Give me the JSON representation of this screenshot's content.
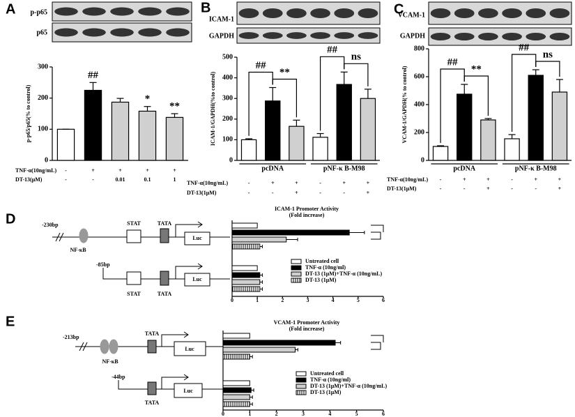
{
  "chart_data": [
    {
      "type": "bar",
      "panel": "A",
      "blot_labels": [
        "p-p65",
        "p65"
      ],
      "ylabel": "p-p65/p65(% to control)",
      "ylim": [
        0,
        300
      ],
      "yticks": [
        0,
        100,
        200,
        300
      ],
      "values": [
        100,
        225,
        187,
        158,
        138
      ],
      "errors": [
        0,
        25,
        12,
        15,
        12
      ],
      "colors": [
        "#ffffff",
        "#000000",
        "#d0d0d0",
        "#d0d0d0",
        "#d0d0d0"
      ],
      "annotations": [
        null,
        "##",
        null,
        "*",
        "**"
      ],
      "treatments": [
        {
          "name": "TNF-α(10ng/mL)",
          "values": [
            "-",
            "+",
            "+",
            "+",
            "+"
          ]
        },
        {
          "name": "DT-13(μM)",
          "values": [
            "-",
            "-",
            "0.01",
            "0.1",
            "1"
          ]
        }
      ]
    },
    {
      "type": "bar",
      "panel": "B",
      "blot_labels": [
        "ICAM-1",
        "GAPDH"
      ],
      "ylabel": "ICAM-1/GAPDH(%to control)",
      "ylim": [
        0,
        500
      ],
      "yticks": [
        0,
        100,
        200,
        300,
        400,
        500
      ],
      "values": [
        100,
        288,
        165,
        112,
        368,
        300
      ],
      "errors": [
        5,
        65,
        30,
        18,
        60,
        45
      ],
      "colors": [
        "#ffffff",
        "#000000",
        "#d0d0d0",
        "#ffffff",
        "#000000",
        "#d0d0d0"
      ],
      "annotations": [
        null,
        "##",
        "**",
        null,
        "##",
        "ns"
      ],
      "group_labels": [
        "pcDNA",
        "pNF-κ B-M98"
      ],
      "treatments": [
        {
          "name": "TNF-α(10ng/mL)",
          "values": [
            "-",
            "+",
            "+",
            "-",
            "+",
            "+"
          ]
        },
        {
          "name": "DT-13(1μM)",
          "values": [
            "-",
            "-",
            "+",
            "-",
            "-",
            "+"
          ]
        }
      ]
    },
    {
      "type": "bar",
      "panel": "C",
      "blot_labels": [
        "VCAM-1",
        "GAPDH"
      ],
      "ylabel": "VCAM-1/GAPDH(% to control)",
      "ylim": [
        0,
        800
      ],
      "yticks": [
        0,
        200,
        400,
        600,
        800
      ],
      "values": [
        100,
        475,
        290,
        155,
        610,
        490
      ],
      "errors": [
        5,
        70,
        10,
        30,
        40,
        90
      ],
      "colors": [
        "#ffffff",
        "#000000",
        "#d0d0d0",
        "#ffffff",
        "#000000",
        "#d0d0d0"
      ],
      "annotations": [
        null,
        "##",
        "**",
        null,
        "##",
        "ns"
      ],
      "group_labels": [
        "pcDNA",
        "pNF-κ B-M98"
      ],
      "treatments": [
        {
          "name": "TNF-α(10ng/mL)",
          "values": [
            "-",
            "+",
            "+",
            "-",
            "+",
            "+"
          ]
        },
        {
          "name": "DT-13(1μM)",
          "values": [
            "-",
            "-",
            "+",
            "-",
            "-",
            "+"
          ]
        }
      ]
    },
    {
      "type": "barh",
      "panel": "D",
      "title": "ICAM-1 Promoter Activity",
      "subtitle": "(Fold increase)",
      "xlim": [
        0,
        6
      ],
      "xticks": [
        0,
        1,
        2,
        3,
        4,
        5,
        6
      ],
      "constructs": [
        {
          "position": "-230bp",
          "elements": [
            "NF-κB",
            "STAT",
            "TATA",
            "Luc"
          ]
        },
        {
          "position": "-85bp",
          "elements": [
            "STAT",
            "TATA",
            "Luc"
          ]
        }
      ],
      "series": [
        {
          "name": "Untreated cell",
          "color": "#ffffff",
          "values": [
            1.0,
            1.0
          ],
          "errors": [
            0,
            0
          ]
        },
        {
          "name": "TNF-α (10ng/ml)",
          "color": "#000000",
          "values": [
            4.65,
            1.1
          ],
          "errors": [
            0.6,
            0.1
          ]
        },
        {
          "name": "DT-13 (1μM)+TNF-α (10ng/mL)",
          "color": "#d0d0d0",
          "values": [
            2.15,
            1.1
          ],
          "errors": [
            0.45,
            0.1
          ]
        },
        {
          "name": "DT-13 (1μM)",
          "color": "#bbbbbb",
          "pattern": "hatch",
          "values": [
            1.1,
            1.1
          ],
          "errors": [
            0.1,
            0.1
          ]
        }
      ]
    },
    {
      "type": "barh",
      "panel": "E",
      "title": "VCAM-1 Promoter Activity",
      "subtitle": "(Fold increase)",
      "xlim": [
        0,
        6
      ],
      "xticks": [
        0,
        1,
        2,
        3,
        4,
        5,
        6
      ],
      "constructs": [
        {
          "position": "-213bp",
          "elements": [
            "NF-κB",
            "TATA",
            "Luc"
          ]
        },
        {
          "position": "-44bp",
          "elements": [
            "TATA",
            "Luc"
          ]
        }
      ],
      "series": [
        {
          "name": "Untreated cell",
          "color": "#ffffff",
          "values": [
            1.0,
            1.0
          ],
          "errors": [
            0,
            0
          ]
        },
        {
          "name": "TNF-α (10ng/ml)",
          "color": "#000000",
          "values": [
            4.2,
            1.05
          ],
          "errors": [
            0.2,
            0.1
          ]
        },
        {
          "name": "DT-13 (1μM)+TNF-α (10ng/mL)",
          "color": "#d0d0d0",
          "values": [
            2.7,
            1.0
          ],
          "errors": [
            0.1,
            0.1
          ]
        },
        {
          "name": "DT-13 (1μM)",
          "color": "#bbbbbb",
          "pattern": "hatch",
          "values": [
            1.0,
            1.0
          ],
          "errors": [
            0.1,
            0.1
          ]
        }
      ]
    }
  ]
}
